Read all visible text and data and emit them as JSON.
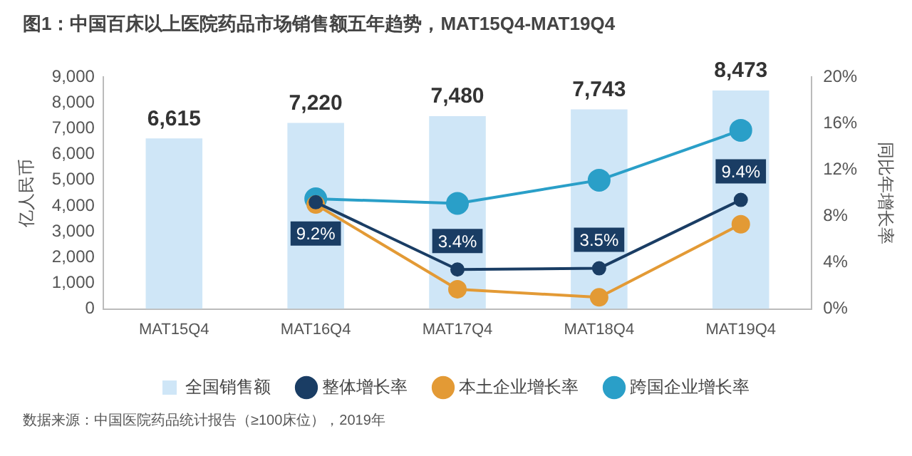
{
  "chart_data": {
    "type": "bar",
    "title": "图1：中国百床以上医院药品市场销售额五年趋势，MAT15Q4-MAT19Q4",
    "ylabel": "亿人民币",
    "y2label": "同比年增长率",
    "categories": [
      "MAT15Q4",
      "MAT16Q4",
      "MAT17Q4",
      "MAT18Q4",
      "MAT19Q4"
    ],
    "series": [
      {
        "name": "全国销售额",
        "color": "#cfe6f7",
        "values": [
          6615,
          7220,
          7480,
          7743,
          8473
        ],
        "value_labels": [
          "6,615",
          "7,220",
          "7,480",
          "7,743",
          "8,473"
        ]
      },
      {
        "name": "整体增长率",
        "type": "line",
        "axis": "y2",
        "color": "#1a3d64",
        "values": [
          null,
          9.2,
          3.4,
          3.5,
          9.4
        ],
        "value_labels": [
          null,
          "9.2%",
          "3.4%",
          "3.5%",
          "9.4%"
        ]
      },
      {
        "name": "本土企业增长率",
        "type": "line",
        "axis": "y2",
        "color": "#e39a35",
        "values": [
          null,
          9.0,
          1.7,
          1.0,
          7.3
        ]
      },
      {
        "name": "跨国企业增长率",
        "type": "line",
        "axis": "y2",
        "color": "#2a9fc8",
        "values": [
          null,
          9.5,
          9.1,
          11.1,
          15.4
        ]
      }
    ],
    "ylim": [
      0,
      9000
    ],
    "yticks": [
      {
        "value": 0,
        "label": "0"
      },
      {
        "value": 1000,
        "label": "1,000"
      },
      {
        "value": 2000,
        "label": "2,000"
      },
      {
        "value": 3000,
        "label": "3,000"
      },
      {
        "value": 4000,
        "label": "4,000"
      },
      {
        "value": 5000,
        "label": "5,000"
      },
      {
        "value": 6000,
        "label": "6,000"
      },
      {
        "value": 7000,
        "label": "7,000"
      },
      {
        "value": 8000,
        "label": "8,000"
      },
      {
        "value": 9000,
        "label": "9,000"
      }
    ],
    "y2lim": [
      0,
      20
    ],
    "y2ticks": [
      {
        "value": 0,
        "label": "0%"
      },
      {
        "value": 4,
        "label": "4%"
      },
      {
        "value": 8,
        "label": "8%"
      },
      {
        "value": 12,
        "label": "12%"
      },
      {
        "value": 16,
        "label": "16%"
      },
      {
        "value": 20,
        "label": "20%"
      }
    ],
    "grid": false,
    "legend": "bottom",
    "marker": "circle",
    "annotations": [
      "数据来源：中国医院药品统计报告（≥100床位），2019年"
    ]
  }
}
